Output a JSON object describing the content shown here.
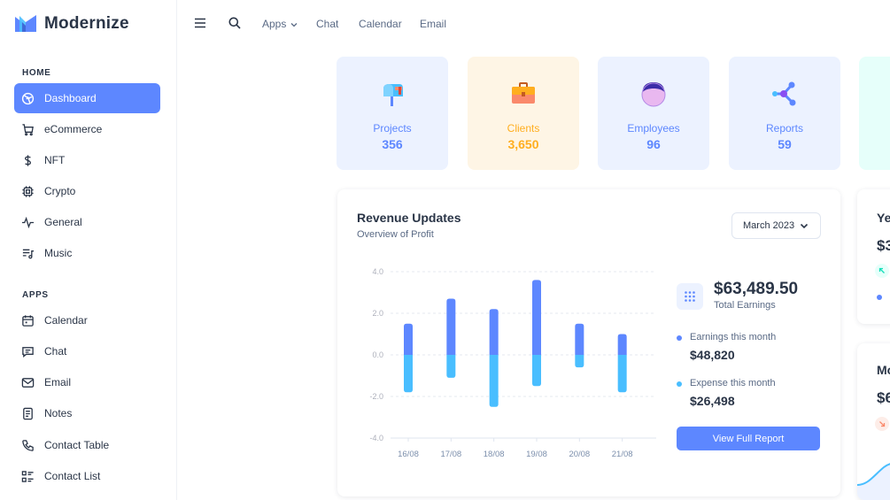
{
  "brand": {
    "name": "Modernize",
    "logo_colors": [
      "#5d87ff",
      "#49beff"
    ]
  },
  "sidebar": {
    "sections": [
      {
        "title": "HOME",
        "items": [
          {
            "label": "Dashboard",
            "icon": "aperture-icon",
            "active": true
          },
          {
            "label": "eCommerce",
            "icon": "shopping-cart-icon"
          },
          {
            "label": "NFT",
            "icon": "currency-dollar-icon"
          },
          {
            "label": "Crypto",
            "icon": "cpu-icon"
          },
          {
            "label": "General",
            "icon": "activity-heartbeat-icon"
          },
          {
            "label": "Music",
            "icon": "playlist-icon"
          }
        ]
      },
      {
        "title": "APPS",
        "items": [
          {
            "label": "Calendar",
            "icon": "calendar-icon"
          },
          {
            "label": "Chat",
            "icon": "message-icon"
          },
          {
            "label": "Email",
            "icon": "mail-icon"
          },
          {
            "label": "Notes",
            "icon": "notes-icon"
          },
          {
            "label": "Contact Table",
            "icon": "phone-icon"
          },
          {
            "label": "Contact List",
            "icon": "list-details-icon"
          }
        ]
      }
    ]
  },
  "topbar": {
    "icons": [
      "menu-icon",
      "search-icon"
    ],
    "links": [
      "Apps",
      "Chat",
      "Calendar",
      "Email"
    ]
  },
  "stats": [
    {
      "label": "Projects",
      "value": "356",
      "color": "#5d87ff",
      "bg": "#ecf2ff",
      "icon": "mailbox-icon"
    },
    {
      "label": "Clients",
      "value": "3,650",
      "color": "#ffae1f",
      "bg": "#fef5e5",
      "icon": "briefcase-icon"
    },
    {
      "label": "Employees",
      "value": "96",
      "color": "#5d87ff",
      "bg": "#ecf2ff",
      "icon": "user-avatar-icon"
    },
    {
      "label": "Reports",
      "value": "59",
      "color": "#5d87ff",
      "bg": "#ecf2ff",
      "icon": "share-nodes-icon"
    }
  ],
  "revenue": {
    "title": "Revenue Updates",
    "subtitle": "Overview of Profit",
    "period": "March 2023",
    "total_value": "$63,489.50",
    "total_label": "Total Earnings",
    "earnings_label": "Earnings this month",
    "earnings_value": "$48,820",
    "expense_label": "Expense this month",
    "expense_value": "$26,498",
    "button": "View Full Report",
    "colors": {
      "earnings": "#5d87ff",
      "expense": "#49beff"
    }
  },
  "chart_data": {
    "type": "bar",
    "categories": [
      "16/08",
      "17/08",
      "18/08",
      "19/08",
      "20/08",
      "21/08"
    ],
    "series": [
      {
        "values": [
          1.5,
          2.7,
          2.2,
          3.6,
          1.5,
          1.0
        ]
      },
      {
        "values": [
          -1.8,
          -1.1,
          -2.5,
          -1.5,
          -0.6,
          -1.8
        ]
      }
    ],
    "y_ticks": [
      "4.0",
      "2.0",
      "0.0",
      "-2.0",
      "-4.0"
    ],
    "ylim": [
      -4,
      4
    ],
    "grid": true
  },
  "right_cards": [
    {
      "title": "Ye",
      "value": "$3"
    },
    {
      "title": "Mo",
      "value": "$6"
    }
  ]
}
